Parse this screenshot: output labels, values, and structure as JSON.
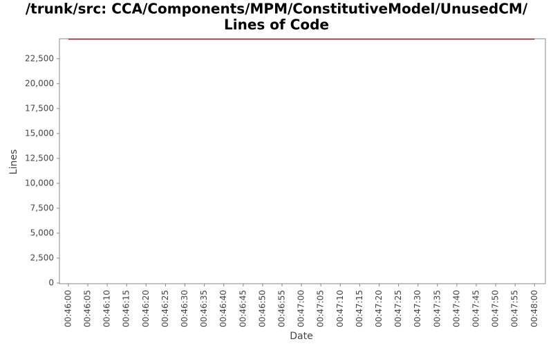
{
  "chart_data": {
    "type": "line",
    "title": "/trunk/src: CCA/Components/MPM/ConstitutiveModel/UnusedCM/",
    "subtitle": "Lines of Code",
    "x_label": "Date",
    "y_label": "Lines",
    "series": [
      {
        "color": "#800000",
        "x": [
          "00:46:00",
          "00:48:00"
        ],
        "values": [
          24450,
          24450
        ]
      }
    ],
    "xlim": [
      "00:45:57.7",
      "00:48:02.8"
    ],
    "xticks": [
      "00:46:00",
      "00:46:05",
      "00:46:10",
      "00:46:15",
      "00:46:20",
      "00:46:25",
      "00:46:30",
      "00:46:35",
      "00:46:40",
      "00:46:45",
      "00:46:50",
      "00:46:55",
      "00:47:00",
      "00:47:05",
      "00:47:10",
      "00:47:15",
      "00:47:20",
      "00:47:25",
      "00:47:30",
      "00:47:35",
      "00:47:40",
      "00:47:45",
      "00:47:50",
      "00:47:55",
      "00:48:00"
    ],
    "ylim": [
      0,
      24500
    ],
    "yticks": [
      0,
      {
        "value": 2500,
        "label": "2,500"
      },
      {
        "value": 5000,
        "label": "5,000"
      },
      {
        "value": 7500,
        "label": "7,500"
      },
      {
        "value": 10000,
        "label": "10,000"
      },
      {
        "value": 12500,
        "label": "12,500"
      },
      {
        "value": 15000,
        "label": "15,000"
      },
      {
        "value": 17500,
        "label": "17,500"
      },
      {
        "value": 20000,
        "label": "20,000"
      },
      {
        "value": 22500,
        "label": "22,500"
      }
    ],
    "grid": false
  }
}
